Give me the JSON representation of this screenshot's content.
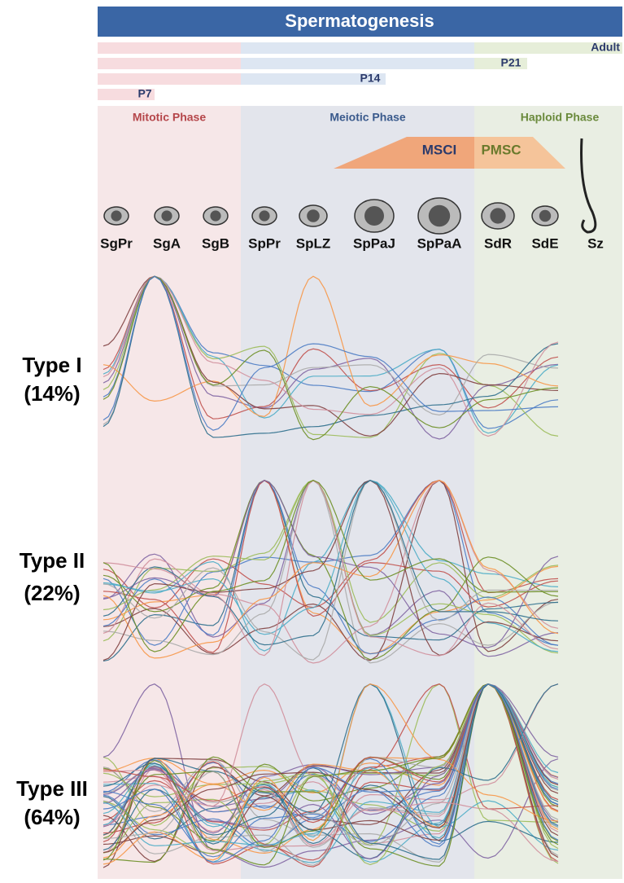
{
  "header": {
    "title": "Spermatogenesis"
  },
  "age_bars": [
    "Adult",
    "P21",
    "P14",
    "P7"
  ],
  "phases": [
    "Mitotic Phase",
    "Meiotic Phase",
    "Haploid Phase"
  ],
  "inactivation": [
    "MSCI",
    "PMSC"
  ],
  "stages": [
    "SgPr",
    "SgA",
    "SgB",
    "SpPr",
    "SpLZ",
    "SpPaJ",
    "SpPaA",
    "SdR",
    "SdE",
    "Sz"
  ],
  "types": [
    {
      "name": "Type I",
      "share": "(14%)"
    },
    {
      "name": "Type II",
      "share": "(22%)"
    },
    {
      "name": "Type III",
      "share": "(64%)"
    }
  ]
}
